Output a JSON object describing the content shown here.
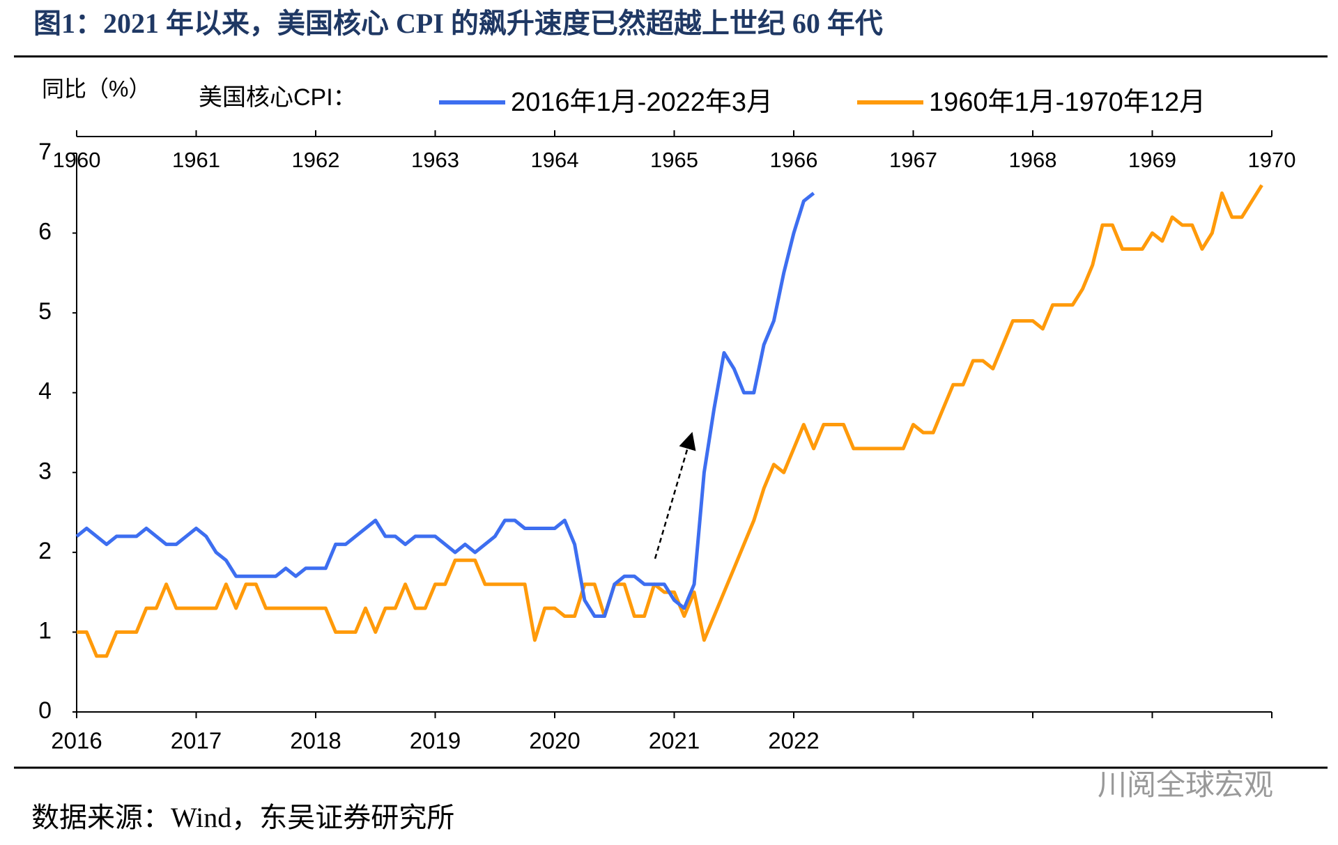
{
  "title": "图1：2021 年以来，美国核心 CPI 的飙升速度已然超越上世纪 60 年代",
  "source": "数据来源：Wind，东吴证券研究所",
  "watermark": "川阅全球宏观",
  "chart_data": {
    "type": "line",
    "y_label": "同比（%）",
    "legend_title": "美国核心CPI：",
    "xlim": [
      0,
      120
    ],
    "xticks": [
      {
        "value": 0,
        "label": "2016"
      },
      {
        "value": 12,
        "label": "2017"
      },
      {
        "value": 24,
        "label": "2018"
      },
      {
        "value": 36,
        "label": "2019"
      },
      {
        "value": 48,
        "label": "2020"
      },
      {
        "value": 60,
        "label": "2021"
      },
      {
        "value": 72,
        "label": "2022"
      }
    ],
    "xminorticks": [
      84,
      96,
      108,
      120
    ],
    "x2lim": [
      0,
      120
    ],
    "x2ticks": [
      {
        "value": 0,
        "label": "1960"
      },
      {
        "value": 12,
        "label": "1961"
      },
      {
        "value": 24,
        "label": "1962"
      },
      {
        "value": 36,
        "label": "1963"
      },
      {
        "value": 48,
        "label": "1964"
      },
      {
        "value": 60,
        "label": "1965"
      },
      {
        "value": 72,
        "label": "1966"
      },
      {
        "value": 84,
        "label": "1967"
      },
      {
        "value": 96,
        "label": "1968"
      },
      {
        "value": 108,
        "label": "1969"
      },
      {
        "value": 120,
        "label": "1970"
      }
    ],
    "ylim": [
      0,
      7
    ],
    "yticks": [
      0,
      1,
      2,
      3,
      4,
      5,
      6,
      7
    ],
    "series": [
      {
        "name": "2016年1月-2022年3月",
        "color": "#3d6ef0",
        "axis": "x",
        "values": [
          2.2,
          2.3,
          2.2,
          2.1,
          2.2,
          2.2,
          2.2,
          2.3,
          2.2,
          2.1,
          2.1,
          2.2,
          2.3,
          2.2,
          2.0,
          1.9,
          1.7,
          1.7,
          1.7,
          1.7,
          1.7,
          1.8,
          1.7,
          1.8,
          1.8,
          1.8,
          2.1,
          2.1,
          2.2,
          2.3,
          2.4,
          2.2,
          2.2,
          2.1,
          2.2,
          2.2,
          2.2,
          2.1,
          2.0,
          2.1,
          2.0,
          2.1,
          2.2,
          2.4,
          2.4,
          2.3,
          2.3,
          2.3,
          2.3,
          2.4,
          2.1,
          1.4,
          1.2,
          1.2,
          1.6,
          1.7,
          1.7,
          1.6,
          1.6,
          1.6,
          1.4,
          1.3,
          1.6,
          3.0,
          3.8,
          4.5,
          4.3,
          4.0,
          4.0,
          4.6,
          4.9,
          5.5,
          6.0,
          6.4,
          6.5
        ]
      },
      {
        "name": "1960年1月-1970年12月",
        "color": "#ff9a0a",
        "axis": "x2",
        "values": [
          1.0,
          1.0,
          0.7,
          0.7,
          1.0,
          1.0,
          1.0,
          1.3,
          1.3,
          1.6,
          1.3,
          1.3,
          1.3,
          1.3,
          1.3,
          1.6,
          1.3,
          1.6,
          1.6,
          1.3,
          1.3,
          1.3,
          1.3,
          1.3,
          1.3,
          1.3,
          1.0,
          1.0,
          1.0,
          1.3,
          1.0,
          1.3,
          1.3,
          1.6,
          1.3,
          1.3,
          1.6,
          1.6,
          1.9,
          1.9,
          1.9,
          1.6,
          1.6,
          1.6,
          1.6,
          1.6,
          0.9,
          1.3,
          1.3,
          1.2,
          1.2,
          1.6,
          1.6,
          1.2,
          1.6,
          1.6,
          1.2,
          1.2,
          1.6,
          1.5,
          1.5,
          1.2,
          1.5,
          0.9,
          1.2,
          1.5,
          1.8,
          2.1,
          2.4,
          2.8,
          3.1,
          3.0,
          3.3,
          3.6,
          3.3,
          3.6,
          3.6,
          3.6,
          3.3,
          3.3,
          3.3,
          3.3,
          3.3,
          3.3,
          3.6,
          3.5,
          3.5,
          3.8,
          4.1,
          4.1,
          4.4,
          4.4,
          4.3,
          4.6,
          4.9,
          4.9,
          4.9,
          4.8,
          5.1,
          5.1,
          5.1,
          5.3,
          5.6,
          6.1,
          6.1,
          5.8,
          5.8,
          5.8,
          6.0,
          5.9,
          6.2,
          6.1,
          6.1,
          5.8,
          6.0,
          6.5,
          6.2,
          6.2,
          6.4,
          6.6
        ]
      }
    ]
  }
}
